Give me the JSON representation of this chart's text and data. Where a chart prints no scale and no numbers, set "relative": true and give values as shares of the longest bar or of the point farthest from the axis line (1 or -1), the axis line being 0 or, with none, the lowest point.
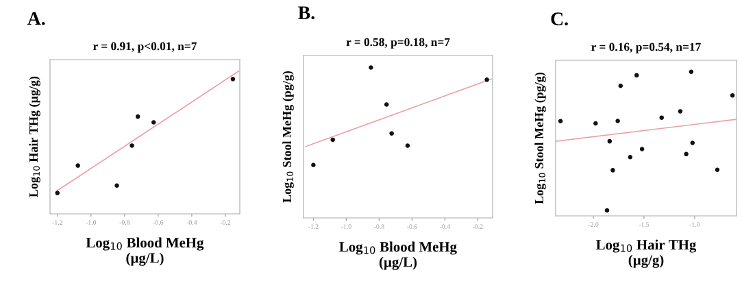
{
  "chart_data": [
    {
      "type": "scatter",
      "title": "A.",
      "subtitle": "r = 0.91, p<0.01, n=7",
      "xlabel": "Log$_{10}$ Blood MeHg\n(µg/L)",
      "ylabel": "Log$_{10}$ Hair THg (µg/g)",
      "relative": true,
      "tick_labels": "x",
      "xlim": [
        -1.244,
        -0.114
      ],
      "xticks": [
        {
          "value": -1.2,
          "label": "-1.2"
        },
        {
          "value": -1.0,
          "label": "-1.0"
        },
        {
          "value": -0.8,
          "label": "-0.8"
        },
        {
          "value": -0.6,
          "label": "-0.6"
        },
        {
          "value": -0.4,
          "label": "-0.4"
        },
        {
          "value": -0.2,
          "label": "-0.2"
        }
      ],
      "series": [
        {
          "color": "#111111",
          "marker": "circle",
          "x": [
            -1.2,
            -1.078,
            -0.846,
            -0.756,
            -0.721,
            -0.627,
            -0.155
          ],
          "values": [
            0.146,
            0.338,
            0.198,
            0.478,
            0.681,
            0.641,
            0.944
          ]
        },
        {
          "type": "line",
          "color": "#e8a0a8",
          "x": [
            -1.2,
            -0.12
          ],
          "values": [
            0.163,
            1.0
          ]
        }
      ]
    },
    {
      "type": "scatter",
      "title": "B.",
      "subtitle": "r = 0.58, p=0.18, n=7",
      "xlabel": "Log$_{10}$ Blood MeHg\n(µg/L)",
      "ylabel": "Log$_{10}$ Stool MeHg (pg/g)",
      "relative": true,
      "tick_labels": "x",
      "xlim": [
        -1.26,
        -0.11
      ],
      "xticks": [
        {
          "value": -1.2,
          "label": "-1.2"
        },
        {
          "value": -1.0,
          "label": "-1.0"
        },
        {
          "value": -0.8,
          "label": "-0.8"
        },
        {
          "value": -0.6,
          "label": "-0.6"
        },
        {
          "value": -0.4,
          "label": "-0.4"
        },
        {
          "value": -0.2,
          "label": "-0.2"
        }
      ],
      "series": [
        {
          "color": "#111111",
          "marker": "circle",
          "x": [
            -1.2,
            -1.082,
            -0.85,
            -0.755,
            -0.724,
            -0.627,
            -0.145
          ],
          "values": [
            0.352,
            0.52,
            1.0,
            0.754,
            0.562,
            0.481,
            0.919
          ]
        },
        {
          "type": "line",
          "color": "#e8a0a8",
          "x": [
            -1.246,
            -0.118
          ],
          "values": [
            0.475,
            0.924
          ]
        }
      ]
    },
    {
      "type": "scatter",
      "title": "C.",
      "subtitle": "r = 0.16, p=0.54, n=17",
      "xlabel": "Log$_{10}$ Hair THg\n(µg/g)",
      "ylabel": "Log$_{10}$ Stool MeHg (pg/g)",
      "relative": true,
      "tick_labels": "x",
      "xlim": [
        -2.373,
        -0.585
      ],
      "xticks": [
        {
          "value": -2.0,
          "label": "-2.0"
        },
        {
          "value": -1.5,
          "label": "-1.5"
        },
        {
          "value": -1.0,
          "label": "-1.0"
        }
      ],
      "series": [
        {
          "color": "#111111",
          "marker": "circle",
          "x": [
            -2.325,
            -1.978,
            -1.865,
            -1.839,
            -1.808,
            -1.759,
            -1.731,
            -1.636,
            -1.572,
            -1.519,
            -1.325,
            -1.141,
            -1.082,
            -1.033,
            -1.02,
            -0.775,
            -0.625
          ],
          "values": [
            0.658,
            0.642,
            0.038,
            0.518,
            0.317,
            0.659,
            0.903,
            0.408,
            0.976,
            0.464,
            0.682,
            0.726,
            0.429,
            1.0,
            0.507,
            0.32,
            0.836
          ]
        },
        {
          "type": "line",
          "color": "#e8a0a8",
          "x": [
            -2.369,
            -0.592
          ],
          "values": [
            0.518,
            0.67
          ]
        }
      ]
    }
  ]
}
